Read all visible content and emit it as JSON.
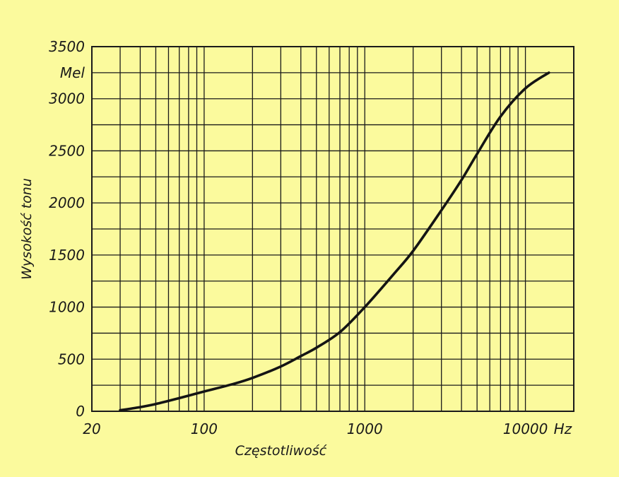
{
  "chart_data": {
    "type": "line",
    "xlabel": "Częstotliwość",
    "ylabel": "Wysokość tonu",
    "x_unit": "Hz",
    "y_unit": "Mel",
    "x_scale": "log",
    "xlim": [
      20,
      20000
    ],
    "ylim": [
      0,
      3500
    ],
    "x_tick_labels": [
      "20",
      "100",
      "1000",
      "10000"
    ],
    "y_tick_labels": [
      "0",
      "500",
      "1000",
      "1500",
      "2000",
      "2500",
      "3000",
      "3500"
    ],
    "grid": true,
    "series": [
      {
        "x": [
          30,
          40,
          50,
          60,
          80,
          100,
          150,
          200,
          300,
          400,
          500,
          700,
          1000,
          1500,
          2000,
          3000,
          4000,
          5000,
          7000,
          10000,
          14000
        ],
        "y": [
          10,
          40,
          70,
          100,
          150,
          190,
          260,
          320,
          430,
          530,
          610,
          760,
          1000,
          1310,
          1540,
          1930,
          2220,
          2470,
          2830,
          3100,
          3250
        ]
      }
    ]
  }
}
